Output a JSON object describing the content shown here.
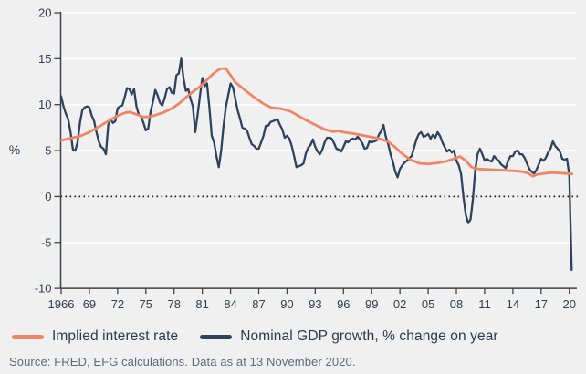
{
  "footer": {
    "source": "Source: FRED, EFG calculations. Data as at 13 November 2020."
  },
  "colors": {
    "background": "#f1f0f1",
    "grid": "#ffffff",
    "axis": "#3d4247",
    "tick_text": "#2d3e52",
    "zero_line": "#1c1c1c",
    "legend_text": "#2b3a4e",
    "footer_text": "#5a6b7e",
    "implied_rate_line": "#f08566",
    "gdp_line": "#2d425c"
  },
  "chart_data": {
    "type": "line",
    "title": "",
    "xlabel": "",
    "ylabel": "%",
    "ylim": [
      -10,
      20
    ],
    "xlim": [
      1966,
      2020.9
    ],
    "grid": true,
    "legend_position": "bottom",
    "y_ticks": [
      20,
      15,
      10,
      5,
      0,
      -5,
      -10
    ],
    "grid_values": [
      20,
      15,
      10,
      5,
      -5
    ],
    "zero_line_value": 0,
    "x_ticks": [
      {
        "year": 1966,
        "label": "1966"
      },
      {
        "year": 1969,
        "label": "69"
      },
      {
        "year": 1972,
        "label": "72"
      },
      {
        "year": 1975,
        "label": "75"
      },
      {
        "year": 1978,
        "label": "78"
      },
      {
        "year": 1981,
        "label": "81"
      },
      {
        "year": 1984,
        "label": "84"
      },
      {
        "year": 1987,
        "label": "87"
      },
      {
        "year": 1990,
        "label": "90"
      },
      {
        "year": 1993,
        "label": "93"
      },
      {
        "year": 1996,
        "label": "96"
      },
      {
        "year": 1999,
        "label": "99"
      },
      {
        "year": 2002,
        "label": "02"
      },
      {
        "year": 2005,
        "label": "05"
      },
      {
        "year": 2008,
        "label": "08"
      },
      {
        "year": 2011,
        "label": "11"
      },
      {
        "year": 2014,
        "label": "14"
      },
      {
        "year": 2017,
        "label": "17"
      },
      {
        "year": 2020,
        "label": "20"
      }
    ],
    "series": [
      {
        "name": "Implied interest rate",
        "color": "#f08566",
        "line_width": 2.8,
        "x": [
          1966,
          1967,
          1968,
          1969,
          1970,
          1971,
          1972,
          1972.9,
          1973.3,
          1974.1,
          1974.8,
          1975.5,
          1976.3,
          1977,
          1977.8,
          1978.5,
          1979.3,
          1980,
          1980.8,
          1981.5,
          1982.3,
          1982.9,
          1983.5,
          1984,
          1984.5,
          1985.5,
          1986.5,
          1987.5,
          1988.4,
          1989.4,
          1990.4,
          1991,
          1992,
          1993,
          1994,
          1994.9,
          1995.4,
          1996,
          1997.3,
          1998.8,
          1999.8,
          2000.7,
          2001.5,
          2002.2,
          2003.1,
          2004.1,
          2005,
          2006,
          2007,
          2007.7,
          2008.4,
          2009,
          2009.6,
          2010.3,
          2011,
          2012,
          2013,
          2014,
          2015,
          2015.7,
          2016.1,
          2016.6,
          2017.3,
          2018,
          2019,
          2019.7,
          2020.3
        ],
        "values": [
          6.1,
          6.35,
          6.55,
          7.0,
          7.6,
          8.2,
          8.8,
          9.15,
          9.2,
          8.9,
          8.65,
          8.7,
          8.95,
          9.2,
          9.6,
          10.1,
          10.8,
          11.4,
          12.0,
          12.7,
          13.5,
          13.9,
          13.95,
          13.2,
          12.45,
          11.6,
          10.8,
          10.1,
          9.65,
          9.55,
          9.25,
          8.9,
          8.3,
          7.8,
          7.3,
          7.05,
          7.15,
          7.0,
          6.8,
          6.5,
          6.3,
          6.0,
          5.35,
          4.7,
          4.0,
          3.6,
          3.55,
          3.65,
          3.85,
          4.1,
          4.35,
          3.9,
          3.2,
          3.0,
          2.95,
          2.9,
          2.85,
          2.8,
          2.7,
          2.5,
          2.2,
          2.4,
          2.5,
          2.6,
          2.55,
          2.5,
          2.45
        ]
      },
      {
        "name": "Nominal GDP growth, % change on year",
        "color": "#2d425c",
        "line_width": 2.3,
        "x_start": 1966,
        "x_step": 0.25,
        "values": [
          10.9,
          9.8,
          9.0,
          8.4,
          7.0,
          5.1,
          5.0,
          5.9,
          8.0,
          9.4,
          9.7,
          9.8,
          9.7,
          8.8,
          8.2,
          7.0,
          6.0,
          5.4,
          5.2,
          4.6,
          7.8,
          8.4,
          8.0,
          8.2,
          9.6,
          9.8,
          9.9,
          10.8,
          11.8,
          11.7,
          11.1,
          11.7,
          9.8,
          8.9,
          8.7,
          8.0,
          7.2,
          7.4,
          9.2,
          10.3,
          11.6,
          11.0,
          10.2,
          9.9,
          10.7,
          11.7,
          11.9,
          11.3,
          11.2,
          13.2,
          13.4,
          15.0,
          12.9,
          11.5,
          11.7,
          10.6,
          9.8,
          7.0,
          8.9,
          11.0,
          12.9,
          12.0,
          12.3,
          9.7,
          6.6,
          5.9,
          4.4,
          3.2,
          5.0,
          7.6,
          9.7,
          11.0,
          12.3,
          11.9,
          10.7,
          9.4,
          8.5,
          7.5,
          7.4,
          7.2,
          6.4,
          5.7,
          5.5,
          5.2,
          5.2,
          5.9,
          6.6,
          7.7,
          7.7,
          8.1,
          8.2,
          8.3,
          8.4,
          7.8,
          7.3,
          6.4,
          6.6,
          6.3,
          5.5,
          4.4,
          3.2,
          3.3,
          3.4,
          3.6,
          4.7,
          5.3,
          5.6,
          6.2,
          5.4,
          4.9,
          4.6,
          5.1,
          5.9,
          6.4,
          6.4,
          6.3,
          5.8,
          5.2,
          5.1,
          4.9,
          5.4,
          6.0,
          5.9,
          6.2,
          6.3,
          6.2,
          6.5,
          6.2,
          5.8,
          5.2,
          5.3,
          6.0,
          5.9,
          6.0,
          6.1,
          6.7,
          7.1,
          7.8,
          6.5,
          5.7,
          4.6,
          3.8,
          2.7,
          2.1,
          3.0,
          3.4,
          3.7,
          3.9,
          4.2,
          4.4,
          5.3,
          6.2,
          6.8,
          7.0,
          6.5,
          6.6,
          6.8,
          6.3,
          6.7,
          6.4,
          7.0,
          6.6,
          5.9,
          5.4,
          4.9,
          5.1,
          4.8,
          5.0,
          3.9,
          3.4,
          2.4,
          -0.1,
          -2.0,
          -2.9,
          -2.5,
          -0.3,
          2.8,
          4.6,
          5.2,
          4.6,
          3.9,
          4.1,
          3.9,
          3.8,
          4.4,
          4.1,
          3.9,
          3.5,
          3.3,
          3.1,
          3.9,
          4.4,
          4.4,
          4.9,
          5.0,
          4.6,
          4.6,
          4.2,
          3.6,
          3.0,
          2.7,
          2.5,
          2.9,
          3.5,
          4.1,
          3.9,
          4.2,
          4.8,
          5.2,
          6.0,
          5.5,
          5.2,
          4.9,
          4.1,
          4.0,
          4.1,
          2.3,
          -8.0
        ]
      }
    ]
  }
}
